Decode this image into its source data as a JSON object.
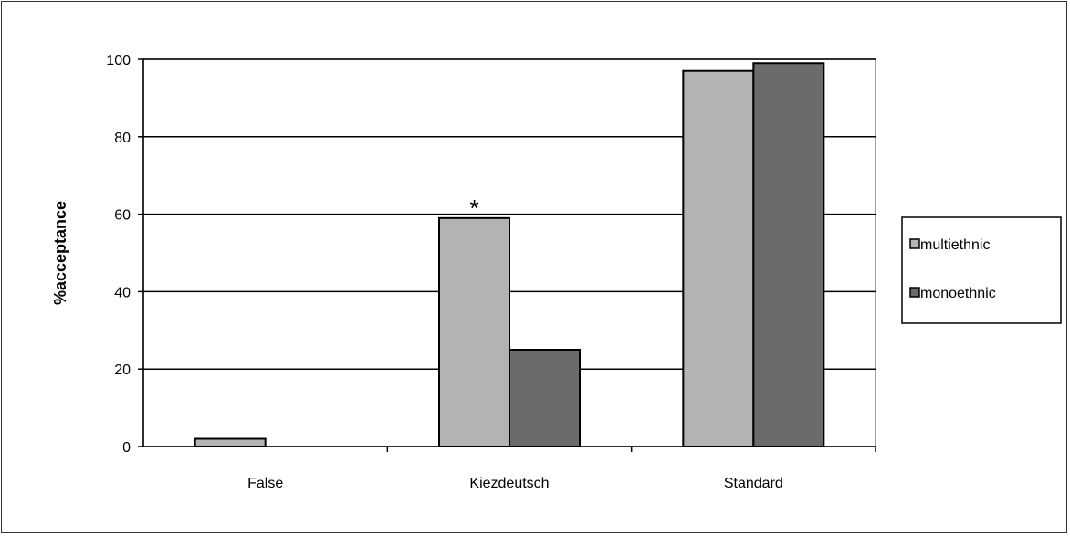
{
  "chart_data": {
    "type": "bar",
    "categories": [
      "False",
      "Kiezdeutsch",
      "Standard"
    ],
    "series": [
      {
        "name": "multiethnic",
        "values": [
          2,
          59,
          97
        ]
      },
      {
        "name": "monoethnic",
        "values": [
          0,
          25,
          99
        ]
      }
    ],
    "ylabel": "%acceptance",
    "xlabel": "",
    "ylim": [
      0,
      100
    ],
    "yticks": [
      0,
      20,
      40,
      60,
      80,
      100
    ],
    "grid": true,
    "legend_position": "right",
    "annotations": [
      {
        "text": "*",
        "category": "Kiezdeutsch"
      }
    ],
    "colors": {
      "multiethnic": "#b3b3b3",
      "monoethnic": "#6b6b6b",
      "axis": "#000000",
      "frame": "#808080"
    }
  }
}
